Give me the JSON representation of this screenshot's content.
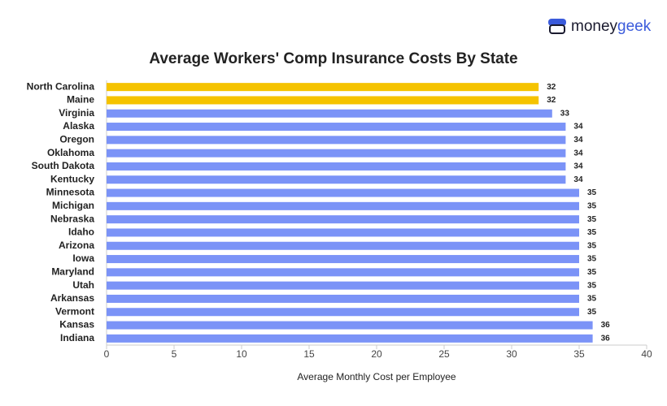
{
  "logo_text": [
    "money",
    "geek"
  ],
  "chart_data": {
    "type": "barh",
    "title": "Average Workers' Comp Insurance Costs By State",
    "xlabel": "Average Monthly Cost per Employee",
    "categories": [
      "North Carolina",
      "Maine",
      "Virginia",
      "Alaska",
      "Oregon",
      "Oklahoma",
      "South Dakota",
      "Kentucky",
      "Minnesota",
      "Michigan",
      "Nebraska",
      "Idaho",
      "Arizona",
      "Iowa",
      "Maryland",
      "Utah",
      "Arkansas",
      "Vermont",
      "Kansas",
      "Indiana"
    ],
    "values": [
      32,
      32,
      33,
      34,
      34,
      34,
      34,
      34,
      35,
      35,
      35,
      35,
      35,
      35,
      35,
      35,
      35,
      35,
      36,
      36
    ],
    "colors": [
      "#f5c300",
      "#f5c300",
      "#7b93f7",
      "#7b93f7",
      "#7b93f7",
      "#7b93f7",
      "#7b93f7",
      "#7b93f7",
      "#7b93f7",
      "#7b93f7",
      "#7b93f7",
      "#7b93f7",
      "#7b93f7",
      "#7b93f7",
      "#7b93f7",
      "#7b93f7",
      "#7b93f7",
      "#7b93f7",
      "#7b93f7",
      "#7b93f7"
    ],
    "xlim": [
      0,
      40
    ],
    "xticks": [
      0,
      5,
      10,
      15,
      20,
      25,
      30,
      35,
      40
    ]
  }
}
